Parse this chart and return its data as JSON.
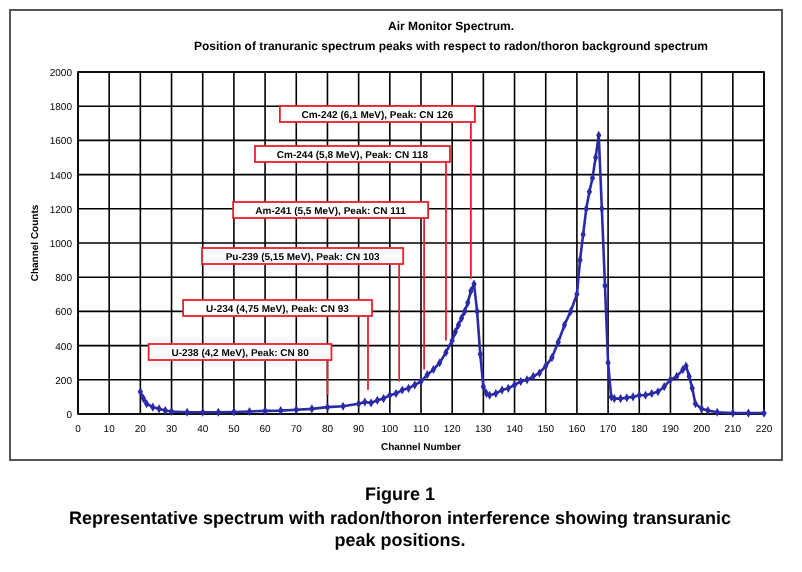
{
  "chart_data": {
    "type": "line",
    "title": "Air Monitor Spectrum.",
    "subtitle": "Position of tranuranic  spectrum peaks with respect to radon/thoron background  spectrum",
    "xlabel": "Channel Number",
    "ylabel": "Channel Counts",
    "series": [
      {
        "color": "#2b2ba8",
        "x": [
          20,
          21,
          22,
          24,
          26,
          28,
          30,
          35,
          40,
          45,
          50,
          55,
          60,
          65,
          70,
          75,
          80,
          85,
          90,
          92,
          94,
          96,
          98,
          100,
          102,
          104,
          106,
          108,
          110,
          112,
          114,
          116,
          118,
          120,
          121,
          122,
          123,
          124,
          125,
          126,
          127,
          128,
          129,
          130,
          131,
          132,
          134,
          136,
          138,
          140,
          142,
          144,
          146,
          148,
          150,
          152,
          154,
          156,
          158,
          160,
          161,
          162,
          163,
          164,
          165,
          166,
          167,
          168,
          169,
          170,
          171,
          172,
          174,
          176,
          178,
          180,
          182,
          184,
          186,
          188,
          190,
          192,
          194,
          195,
          196,
          197,
          198,
          200,
          202,
          205,
          210,
          215,
          220
        ],
        "values": [
          130,
          90,
          60,
          40,
          30,
          20,
          15,
          10,
          10,
          10,
          12,
          15,
          18,
          20,
          25,
          30,
          40,
          45,
          60,
          70,
          65,
          80,
          90,
          110,
          120,
          140,
          150,
          170,
          190,
          230,
          260,
          300,
          360,
          430,
          480,
          520,
          560,
          600,
          650,
          720,
          760,
          600,
          350,
          160,
          120,
          110,
          120,
          140,
          150,
          170,
          190,
          200,
          220,
          240,
          280,
          330,
          420,
          520,
          600,
          700,
          900,
          1050,
          1200,
          1300,
          1380,
          1500,
          1630,
          1200,
          750,
          300,
          100,
          90,
          90,
          95,
          100,
          110,
          110,
          120,
          130,
          160,
          200,
          220,
          260,
          280,
          220,
          150,
          60,
          30,
          20,
          10,
          5,
          5,
          5
        ]
      }
    ],
    "xlim": [
      0,
      220
    ],
    "xticks": [
      0,
      10,
      20,
      30,
      40,
      50,
      60,
      70,
      80,
      90,
      100,
      110,
      120,
      130,
      140,
      150,
      160,
      170,
      180,
      190,
      200,
      210,
      220
    ],
    "ylim": [
      0,
      2000
    ],
    "yticks": [
      0,
      200,
      400,
      600,
      800,
      1000,
      1200,
      1400,
      1600,
      1800,
      2000
    ],
    "grid": true,
    "marker": "diamond",
    "line_style": "solid",
    "ref_lines": [
      {
        "axis": "x",
        "value": 126,
        "label": "Cm-242 (6,1 MeV), Peak: CN 126",
        "color": "#e8202a"
      },
      {
        "axis": "x",
        "value": 118,
        "label": "Cm-244 (5,8 MeV), Peak: CN 118",
        "color": "#e8202a"
      },
      {
        "axis": "x",
        "value": 111,
        "label": "Am-241 (5,5 MeV), Peak: CN 111",
        "color": "#e8202a"
      },
      {
        "axis": "x",
        "value": 103,
        "label": "Pu-239 (5,15 MeV), Peak: CN 103",
        "color": "#e8202a"
      },
      {
        "axis": "x",
        "value": 93,
        "label": "U-234 (4,75 MeV), Peak: CN 93",
        "color": "#e8202a"
      },
      {
        "axis": "x",
        "value": 80,
        "label": "U-238 (4,2 MeV), Peak: CN 80",
        "color": "#e8202a"
      }
    ],
    "annotations": [
      "Figure 1",
      "Representative spectrum with radon/thoron interference showing transuranic peak positions."
    ]
  }
}
